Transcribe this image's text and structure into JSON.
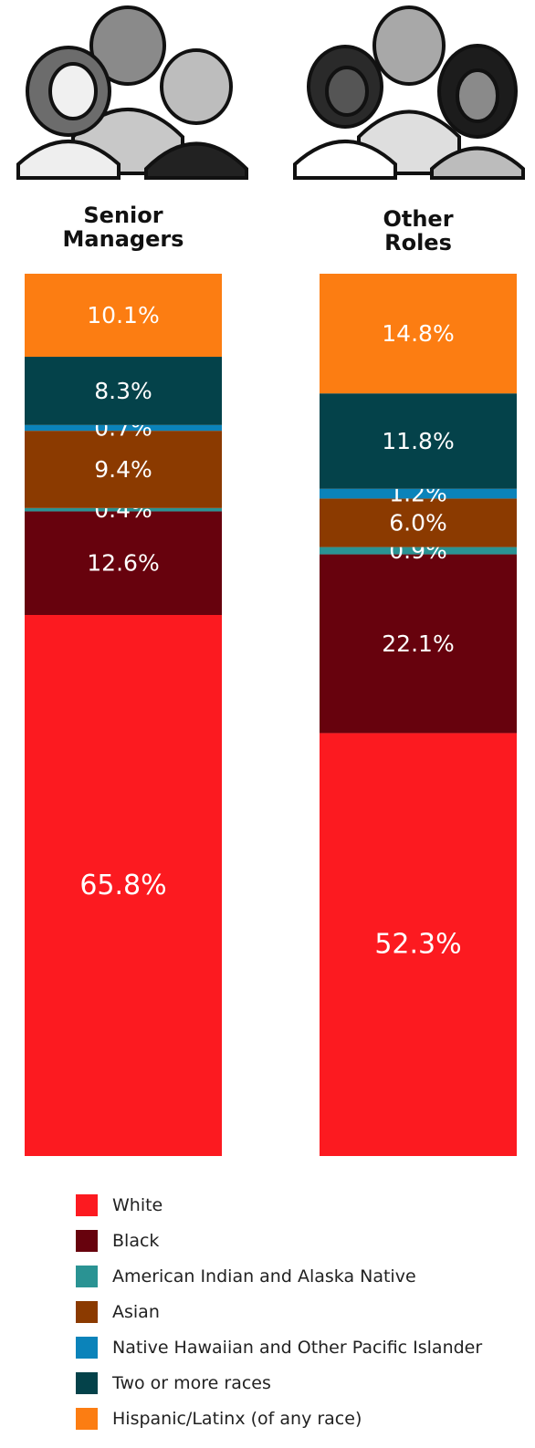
{
  "columns": [
    {
      "title_line1": "Senior",
      "title_line2": "Managers"
    },
    {
      "title_line1": "Other",
      "title_line2": "Roles"
    }
  ],
  "chart_data": {
    "type": "bar",
    "stacked": true,
    "categories": [
      "Senior Managers",
      "Other Roles"
    ],
    "series": [
      {
        "name": "White",
        "color": "#fc1a20",
        "values": [
          65.8,
          52.3
        ],
        "labels": [
          "65.8%",
          "52.3%"
        ]
      },
      {
        "name": "Black",
        "color": "#67020d",
        "values": [
          12.6,
          22.1
        ],
        "labels": [
          "12.6%",
          "22.1%"
        ]
      },
      {
        "name": "American Indian and Alaska Native",
        "color": "#2a9393",
        "values": [
          0.4,
          0.9
        ],
        "labels": [
          "0.4%",
          "0.9%"
        ]
      },
      {
        "name": "Asian",
        "color": "#8b3a00",
        "values": [
          9.4,
          6.0
        ],
        "labels": [
          "9.4%",
          "6.0%"
        ]
      },
      {
        "name": "Native Hawaiian and Other Pacific Islander",
        "color": "#0b83ba",
        "values": [
          0.7,
          1.2
        ],
        "labels": [
          "0.7%",
          "1.2%"
        ]
      },
      {
        "name": "Two or more races",
        "color": "#04424a",
        "values": [
          8.3,
          11.8
        ],
        "labels": [
          "8.3%",
          "11.8%"
        ]
      },
      {
        "name": "Hispanic/Latinx (of any race)",
        "color": "#fc7d12",
        "values": [
          10.1,
          14.8
        ],
        "labels": [
          "10.1%",
          "14.8%"
        ]
      }
    ],
    "value_label_color": "#ffffff",
    "legend_position": "bottom"
  }
}
